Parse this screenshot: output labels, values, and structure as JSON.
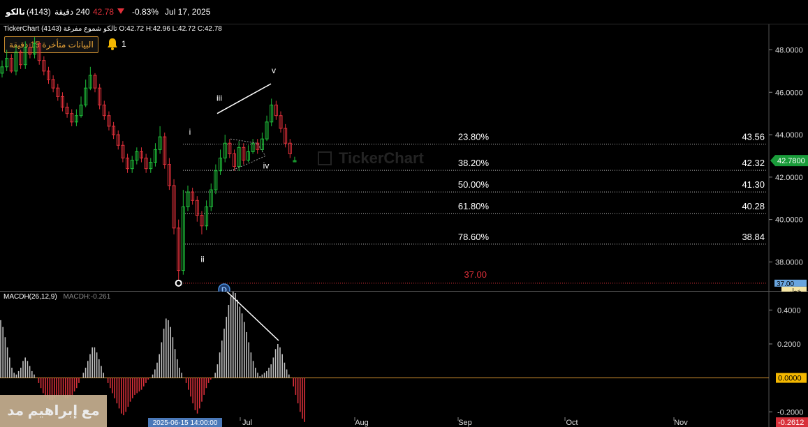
{
  "header": {
    "symbol_name": "تالكو",
    "symbol_code": "(4143)",
    "interval": "240 دقيقة",
    "last_price": "42.78",
    "change_pct": "-0.83%",
    "date": "Jul 17, 2025"
  },
  "ohlc_line": "TickerChart (4143) تالكو شموع مفرغة  O:42.72  H:42.96  L:42.72  C:42.78",
  "delay_notice": "البيانات متأخرة 15 دقيقة",
  "alerts_count": "1",
  "watermark_text": "TickerChart",
  "author_credit": "مع إبراهيم مد",
  "colors": {
    "up": "#1fbf3a",
    "down": "#e0303a",
    "price_tag": "#1a9c3a",
    "zero_tag": "#f5b800"
  },
  "chart_data": [
    {
      "type": "candlestick",
      "price_axis": {
        "min": 36.6,
        "max": 49.2,
        "ticks": [
          48.0,
          46.0,
          44.0,
          42.0,
          40.0,
          38.0
        ],
        "tick_labels": [
          "48.0000",
          "46.0000",
          "44.0000",
          "42.0000",
          "40.0000",
          "38.0000"
        ]
      },
      "last_price_tag": "42.7800",
      "low_tag": {
        "value": "37.00",
        "label": "خطي"
      },
      "x_axis_labels": [
        "2025-06-15 14:00:00",
        "Jul",
        "Aug",
        "Sep",
        "Oct",
        "Nov"
      ],
      "fib_levels": [
        {
          "pct": "23.80%",
          "price": "43.56"
        },
        {
          "pct": "38.20%",
          "price": "42.32"
        },
        {
          "pct": "50.00%",
          "price": "41.30"
        },
        {
          "pct": "61.80%",
          "price": "40.28"
        },
        {
          "pct": "78.60%",
          "price": "38.84"
        }
      ],
      "low_level": {
        "price": "37.00"
      },
      "wave_labels": [
        "i",
        "ii",
        "iii",
        "iv",
        "v"
      ],
      "dividend_marker": "D",
      "closes": [
        47.2,
        47.6,
        47.0,
        47.9,
        47.3,
        48.1,
        47.8,
        48.3,
        47.5,
        47.0,
        46.6,
        46.2,
        45.8,
        45.3,
        45.0,
        44.6,
        44.9,
        45.4,
        46.2,
        46.8,
        46.2,
        45.4,
        44.9,
        44.4,
        44.0,
        43.5,
        42.9,
        42.4,
        42.8,
        43.2,
        42.9,
        42.4,
        42.7,
        43.3,
        43.9,
        42.6,
        41.6,
        39.6,
        37.6,
        40.6,
        41.3,
        40.9,
        40.2,
        39.7,
        40.6,
        41.4,
        42.3,
        42.9,
        43.6,
        43.1,
        42.5,
        43.4,
        42.8,
        43.2,
        43.6,
        43.3,
        43.8,
        44.6,
        45.4,
        44.9,
        44.3,
        43.6,
        43.1,
        42.78
      ],
      "opens": [
        46.9,
        47.2,
        47.6,
        47.0,
        47.9,
        47.3,
        48.1,
        47.8,
        48.3,
        47.5,
        47.0,
        46.6,
        46.2,
        45.8,
        45.3,
        45.0,
        44.6,
        44.9,
        45.4,
        46.2,
        46.8,
        46.2,
        45.4,
        44.9,
        44.4,
        44.0,
        43.5,
        42.9,
        42.4,
        42.8,
        43.2,
        42.9,
        42.4,
        42.7,
        43.3,
        43.9,
        42.6,
        41.6,
        39.6,
        37.6,
        40.6,
        41.3,
        40.9,
        40.2,
        39.7,
        40.6,
        41.4,
        42.3,
        42.9,
        43.6,
        43.1,
        42.5,
        43.4,
        42.8,
        43.2,
        43.6,
        43.3,
        43.8,
        44.6,
        45.4,
        44.9,
        44.3,
        43.6,
        42.72
      ],
      "highs": [
        47.5,
        48.0,
        47.8,
        48.2,
        48.0,
        48.4,
        48.3,
        48.6,
        48.4,
        47.7,
        47.2,
        46.8,
        46.4,
        46.0,
        45.5,
        45.2,
        45.2,
        45.8,
        46.6,
        47.2,
        46.9,
        46.4,
        45.6,
        45.1,
        44.6,
        44.2,
        43.7,
        43.1,
        43.0,
        43.4,
        43.4,
        43.1,
        42.9,
        43.6,
        44.4,
        44.1,
        42.9,
        41.9,
        40.0,
        41.4,
        41.6,
        41.5,
        41.1,
        40.4,
        40.9,
        41.7,
        42.6,
        43.3,
        44.0,
        43.8,
        43.3,
        43.7,
        43.6,
        43.5,
        43.8,
        43.8,
        44.1,
        44.9,
        45.7,
        45.6,
        45.1,
        44.5,
        43.8,
        42.96
      ],
      "lows": [
        46.7,
        47.0,
        46.9,
        46.8,
        47.1,
        47.1,
        47.6,
        47.6,
        47.3,
        46.8,
        46.4,
        46.0,
        45.6,
        45.1,
        44.8,
        44.4,
        44.4,
        44.8,
        45.3,
        46.1,
        46.0,
        45.2,
        44.7,
        44.2,
        43.8,
        43.3,
        42.7,
        42.2,
        42.2,
        42.6,
        42.7,
        42.2,
        42.2,
        42.5,
        43.1,
        42.4,
        41.4,
        39.3,
        37.0,
        37.4,
        40.4,
        40.7,
        39.9,
        39.3,
        39.5,
        40.4,
        41.2,
        42.1,
        42.7,
        42.9,
        42.3,
        42.3,
        42.6,
        42.7,
        43.1,
        43.1,
        43.2,
        43.7,
        44.4,
        44.7,
        44.1,
        43.4,
        42.9,
        42.72
      ]
    },
    {
      "type": "bar",
      "title": "MACDH(26,12,9)",
      "value_label": "MACDH:-0.261",
      "y_axis": {
        "min": -0.24,
        "max": 0.5,
        "ticks": [
          0.4,
          0.2,
          -0.2
        ],
        "tick_labels": [
          "0.4000",
          "0.2000",
          "-0.2000"
        ]
      },
      "zero_tag": "0.0000",
      "last_tag": "-0.2612",
      "values": [
        0.34,
        0.3,
        0.24,
        0.18,
        0.12,
        0.06,
        0.03,
        0.02,
        0.04,
        0.06,
        0.1,
        0.12,
        0.1,
        0.07,
        0.04,
        0.02,
        0.0,
        -0.03,
        -0.06,
        -0.09,
        -0.11,
        -0.12,
        -0.13,
        -0.13,
        -0.12,
        -0.11,
        -0.11,
        -0.1,
        -0.11,
        -0.12,
        -0.12,
        -0.11,
        -0.1,
        -0.08,
        -0.06,
        -0.03,
        0.0,
        0.03,
        0.06,
        0.1,
        0.14,
        0.18,
        0.18,
        0.15,
        0.11,
        0.07,
        0.03,
        0.0,
        -0.03,
        -0.06,
        -0.09,
        -0.12,
        -0.15,
        -0.18,
        -0.21,
        -0.22,
        -0.2,
        -0.17,
        -0.14,
        -0.12,
        -0.1,
        -0.09,
        -0.08,
        -0.07,
        -0.05,
        -0.03,
        -0.01,
        0.0,
        0.02,
        0.05,
        0.09,
        0.14,
        0.21,
        0.29,
        0.35,
        0.34,
        0.3,
        0.24,
        0.17,
        0.11,
        0.06,
        0.03,
        0.0,
        -0.03,
        -0.07,
        -0.11,
        -0.15,
        -0.19,
        -0.21,
        -0.18,
        -0.14,
        -0.1,
        -0.06,
        -0.03,
        -0.01,
        0.0,
        0.03,
        0.08,
        0.15,
        0.22,
        0.29,
        0.36,
        0.43,
        0.48,
        0.52,
        0.5,
        0.46,
        0.42,
        0.38,
        0.33,
        0.27,
        0.21,
        0.15,
        0.1,
        0.06,
        0.03,
        0.01,
        0.02,
        0.03,
        0.04,
        0.06,
        0.08,
        0.12,
        0.17,
        0.2,
        0.18,
        0.14,
        0.09,
        0.05,
        0.02,
        0.0,
        -0.05,
        -0.1,
        -0.15,
        -0.2,
        -0.24,
        -0.26
      ]
    }
  ]
}
